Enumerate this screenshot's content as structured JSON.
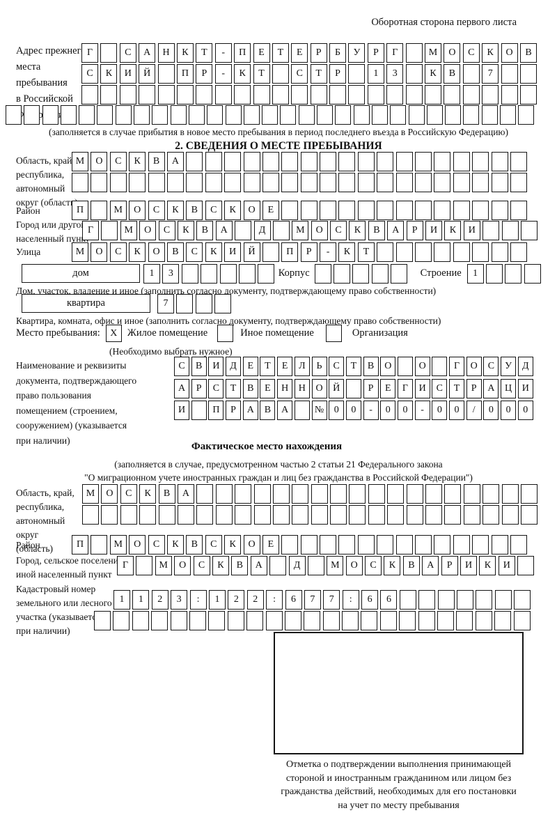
{
  "header": {
    "back_side_label": "Оборотная сторона первого листа"
  },
  "prev_address": {
    "label": "Адрес прежнего\nместа пребывания\nв Российской\nФедерации",
    "row1": [
      "Г",
      "",
      "С",
      "А",
      "Н",
      "К",
      "Т",
      "-",
      "П",
      "Е",
      "Т",
      "Е",
      "Р",
      "Б",
      "У",
      "Р",
      "Г",
      "",
      "М",
      "О",
      "С",
      "К",
      "О",
      "В"
    ],
    "row2": [
      "С",
      "К",
      "И",
      "Й",
      "",
      "П",
      "Р",
      "-",
      "К",
      "Т",
      "",
      "С",
      "Т",
      "Р",
      "",
      "1",
      "3",
      "",
      "К",
      "В",
      "",
      "7",
      "",
      ""
    ],
    "row3": [
      "",
      "",
      "",
      "",
      "",
      "",
      "",
      "",
      "",
      "",
      "",
      "",
      "",
      "",
      "",
      "",
      "",
      "",
      "",
      "",
      "",
      "",
      "",
      ""
    ],
    "full_row": [
      "",
      "",
      "",
      "",
      "",
      "",
      "",
      "",
      "",
      "",
      "",
      "",
      "",
      "",
      "",
      "",
      "",
      "",
      "",
      "",
      "",
      "",
      "",
      "",
      "",
      "",
      "",
      "",
      ""
    ],
    "note": "(заполняется в случае прибытия в новое место пребывания в период последнего въезда в Российскую Федерацию)"
  },
  "section2": {
    "title": "2. СВЕДЕНИЯ О МЕСТЕ ПРЕБЫВАНИЯ",
    "oblast": {
      "label": "Область, край,\nреспублика,\nавтономный\nокруг (область)",
      "row1": [
        "М",
        "О",
        "С",
        "К",
        "В",
        "А",
        "",
        "",
        "",
        "",
        "",
        "",
        "",
        "",
        "",
        "",
        "",
        "",
        "",
        "",
        "",
        "",
        "",
        ""
      ],
      "row2": [
        "",
        "",
        "",
        "",
        "",
        "",
        "",
        "",
        "",
        "",
        "",
        "",
        "",
        "",
        "",
        "",
        "",
        "",
        "",
        "",
        "",
        "",
        "",
        ""
      ]
    },
    "raion": {
      "label": "Район",
      "cells": [
        "П",
        "",
        "М",
        "О",
        "С",
        "К",
        "В",
        "С",
        "К",
        "О",
        "Е",
        "",
        "",
        "",
        "",
        "",
        "",
        "",
        "",
        "",
        "",
        "",
        "",
        ""
      ]
    },
    "gorod": {
      "label": "Город или другой\nнаселенный пункт",
      "cells": [
        "Г",
        "",
        "М",
        "О",
        "С",
        "К",
        "В",
        "А",
        "",
        "Д",
        "",
        "М",
        "О",
        "С",
        "К",
        "В",
        "А",
        "Р",
        "И",
        "К",
        "И",
        "",
        "",
        ""
      ]
    },
    "ulitsa": {
      "label": "Улица",
      "cells": [
        "М",
        "О",
        "С",
        "К",
        "О",
        "В",
        "С",
        "К",
        "И",
        "Й",
        "",
        "П",
        "Р",
        "-",
        "К",
        "Т",
        "",
        "",
        "",
        "",
        "",
        "",
        "",
        ""
      ]
    },
    "dom": {
      "box_label": "дом",
      "cells": [
        "1",
        "3",
        "",
        "",
        "",
        "",
        ""
      ],
      "korpus_label": "Корпус",
      "korpus_cells": [
        "",
        "",
        "",
        "",
        ""
      ],
      "stroenie_label": "Строение",
      "stroenie_cells": [
        "1",
        "",
        "",
        ""
      ],
      "note": "Дом, участок, владение и иное (заполнить согласно документу, подтверждающему право собственности)"
    },
    "kvartira": {
      "box_label": "квартира",
      "cells": [
        "7",
        "",
        "",
        ""
      ],
      "note": "Квартира, комната, офис и иное (заполнить согласно документу, подтверждающему право собственности)"
    },
    "mesto": {
      "label": "Место пребывания:",
      "opt1_mark": "X",
      "opt1": "Жилое помещение",
      "opt2_mark": "",
      "opt2": "Иное помещение",
      "opt3_mark": "",
      "opt3": "Организация",
      "note": "(Необходимо выбрать нужное)"
    },
    "document": {
      "label": "Наименование и реквизиты\nдокумента, подтверждающего\nправо пользования\nпомещением (строением,\nсооружением) (указывается\nпри наличии)",
      "row1": [
        "С",
        "В",
        "И",
        "Д",
        "Е",
        "Т",
        "Е",
        "Л",
        "Ь",
        "С",
        "Т",
        "В",
        "О",
        "",
        "О",
        "",
        "Г",
        "О",
        "С",
        "У",
        "Д"
      ],
      "row2": [
        "А",
        "Р",
        "С",
        "Т",
        "В",
        "Е",
        "Н",
        "Н",
        "О",
        "Й",
        "",
        "Р",
        "Е",
        "Г",
        "И",
        "С",
        "Т",
        "Р",
        "А",
        "Ц",
        "И"
      ],
      "row3": [
        "И",
        "",
        "П",
        "Р",
        "А",
        "В",
        "А",
        "",
        "№",
        "0",
        "0",
        "-",
        "0",
        "0",
        "-",
        "0",
        "0",
        "/",
        "0",
        "0",
        "0"
      ]
    }
  },
  "fact_location": {
    "title": "Фактическое место нахождения",
    "note1": "(заполняется в случае, предусмотренном частью 2 статьи 21 Федерального закона",
    "note2": "\"О миграционном учете иностранных граждан и лиц без гражданства в Российской Федерации\")",
    "oblast": {
      "label": "Область, край,\nреспублика,\nавтономный округ\n(область)",
      "row1": [
        "М",
        "О",
        "С",
        "К",
        "В",
        "А",
        "",
        "",
        "",
        "",
        "",
        "",
        "",
        "",
        "",
        "",
        "",
        "",
        "",
        "",
        "",
        "",
        "",
        ""
      ],
      "row2": [
        "",
        "",
        "",
        "",
        "",
        "",
        "",
        "",
        "",
        "",
        "",
        "",
        "",
        "",
        "",
        "",
        "",
        "",
        "",
        "",
        "",
        "",
        "",
        ""
      ]
    },
    "raion": {
      "label": "Район",
      "cells": [
        "П",
        "",
        "М",
        "О",
        "С",
        "К",
        "В",
        "С",
        "К",
        "О",
        "Е",
        "",
        "",
        "",
        "",
        "",
        "",
        "",
        "",
        "",
        "",
        "",
        "",
        ""
      ]
    },
    "gorod": {
      "label": "Город, сельское поселение,\nиной населенный пункт",
      "cells": [
        "Г",
        "",
        "М",
        "О",
        "С",
        "К",
        "В",
        "А",
        "",
        "Д",
        "",
        "М",
        "О",
        "С",
        "К",
        "В",
        "А",
        "Р",
        "И",
        "К",
        "И",
        ""
      ]
    },
    "kadastr": {
      "label": "Кадастровый номер\nземельного или лесного\nучастка (указывается\nпри наличии)",
      "row1": [
        "1",
        "1",
        "2",
        "3",
        ":",
        "1",
        "2",
        "2",
        ":",
        "6",
        "7",
        "7",
        ":",
        "6",
        "6",
        "",
        "",
        "",
        "",
        "",
        "",
        ""
      ],
      "row2": [
        "",
        "",
        "",
        "",
        "",
        "",
        "",
        "",
        "",
        "",
        "",
        "",
        "",
        "",
        "",
        "",
        "",
        "",
        "",
        "",
        "",
        "",
        ""
      ]
    }
  },
  "stamp": {
    "caption": "Отметка о подтверждении выполнения принимающей\nстороной и иностранным гражданином или лицом без\nгражданства действий, необходимых для его постановки\nна учет по месту пребывания"
  }
}
